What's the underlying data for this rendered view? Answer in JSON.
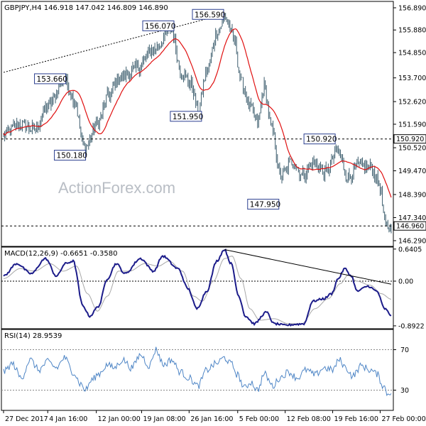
{
  "chart_data": [
    {
      "type": "candlestick",
      "header": "GBPJPY,H4  146.918 147.042 146.809 146.890",
      "watermark": "ActionForex.com",
      "y_ticks": [
        "156.890",
        "155.880",
        "154.850",
        "153.700",
        "152.620",
        "151.590",
        "150.520",
        "149.470",
        "148.390",
        "147.340",
        "146.290"
      ],
      "y_tick_values": [
        156.89,
        155.88,
        154.85,
        153.7,
        152.62,
        151.59,
        150.52,
        149.47,
        148.39,
        147.34,
        146.29
      ],
      "ylim": [
        146.03,
        157.18
      ],
      "x_ticks": [
        "27 Dec 2017",
        "4 Jan 16:00",
        "12 Jan 00:00",
        "19 Jan 08:00",
        "26 Jan 16:00",
        "5 Feb 00:00",
        "12 Feb 08:00",
        "19 Feb 16:00",
        "27 Feb 00:00"
      ],
      "x_tick_bars": [
        0,
        40,
        84,
        125,
        168,
        212,
        255,
        298,
        341
      ],
      "bar_count": 352,
      "price_colors": {
        "bars": "#3d5e6e",
        "ma": "#e01010",
        "level": "#000000"
      },
      "anchors": [
        {
          "bar": 0,
          "price": 151.1
        },
        {
          "bar": 14,
          "price": 151.6
        },
        {
          "bar": 28,
          "price": 151.35
        },
        {
          "bar": 40,
          "price": 152.4
        },
        {
          "bar": 55,
          "price": 153.6
        },
        {
          "bar": 64,
          "price": 152.7
        },
        {
          "bar": 73,
          "price": 150.5
        },
        {
          "bar": 85,
          "price": 151.6
        },
        {
          "bar": 95,
          "price": 152.9
        },
        {
          "bar": 105,
          "price": 153.7
        },
        {
          "bar": 120,
          "price": 154.1
        },
        {
          "bar": 136,
          "price": 155.0
        },
        {
          "bar": 152,
          "price": 155.9
        },
        {
          "bar": 161,
          "price": 153.9
        },
        {
          "bar": 170,
          "price": 153.4
        },
        {
          "bar": 176,
          "price": 152.2
        },
        {
          "bar": 184,
          "price": 154.0
        },
        {
          "bar": 194,
          "price": 155.9
        },
        {
          "bar": 201,
          "price": 156.45
        },
        {
          "bar": 209,
          "price": 155.4
        },
        {
          "bar": 215,
          "price": 153.5
        },
        {
          "bar": 224,
          "price": 152.3
        },
        {
          "bar": 230,
          "price": 151.6
        },
        {
          "bar": 236,
          "price": 153.3
        },
        {
          "bar": 243,
          "price": 151.3
        },
        {
          "bar": 251,
          "price": 149.2
        },
        {
          "bar": 261,
          "price": 149.9
        },
        {
          "bar": 271,
          "price": 149.3
        },
        {
          "bar": 281,
          "price": 149.8
        },
        {
          "bar": 292,
          "price": 149.4
        },
        {
          "bar": 302,
          "price": 150.4
        },
        {
          "bar": 312,
          "price": 149.2
        },
        {
          "bar": 322,
          "price": 149.7
        },
        {
          "bar": 333,
          "price": 149.6
        },
        {
          "bar": 340,
          "price": 148.9
        },
        {
          "bar": 346,
          "price": 147.0
        },
        {
          "bar": 351,
          "price": 146.9
        }
      ],
      "annotations": [
        {
          "label": "156.590",
          "bar": 198,
          "price": 156.59,
          "side": "left"
        },
        {
          "label": "156.070",
          "bar": 153,
          "price": 156.07,
          "side": "left"
        },
        {
          "label": "153.660",
          "bar": 55,
          "price": 153.66,
          "side": "left"
        },
        {
          "label": "151.950",
          "bar": 178,
          "price": 151.95,
          "side": "left"
        },
        {
          "label": "150.180",
          "bar": 73,
          "price": 150.18,
          "side": "left"
        },
        {
          "label": "150.920",
          "bar": 299,
          "price": 150.92,
          "side": "left"
        },
        {
          "label": "147.950",
          "bar": 248,
          "price": 147.95,
          "side": "left"
        }
      ],
      "levels": [
        {
          "label": "150.920",
          "price": 150.92,
          "style": "dashed",
          "color": "#000000"
        },
        {
          "label": "146.960",
          "price": 146.96,
          "style": "dashed",
          "color": "#000000"
        }
      ],
      "trendline": {
        "from": {
          "bar": 0,
          "price": 153.95
        },
        "to": {
          "bar": 200,
          "price": 156.6
        },
        "style": "dotted"
      }
    },
    {
      "type": "line",
      "header": "MACD(12,26,9) -0.6651 -0.3580",
      "y_ticks": [
        "0.6405",
        "0.00",
        "-0.8922"
      ],
      "y_tick_values": [
        0.6405,
        0.0,
        -0.8922
      ],
      "ylim": [
        -0.95,
        0.68
      ],
      "series": [
        {
          "name": "MACD",
          "color": "#1c1c8a",
          "anchors": [
            {
              "bar": 0,
              "v": 0.1
            },
            {
              "bar": 12,
              "v": 0.35
            },
            {
              "bar": 25,
              "v": 0.15
            },
            {
              "bar": 38,
              "v": 0.45
            },
            {
              "bar": 48,
              "v": 0.1
            },
            {
              "bar": 56,
              "v": 0.35
            },
            {
              "bar": 63,
              "v": 0.4
            },
            {
              "bar": 72,
              "v": -0.5
            },
            {
              "bar": 78,
              "v": -0.7
            },
            {
              "bar": 86,
              "v": -0.5
            },
            {
              "bar": 94,
              "v": 0.05
            },
            {
              "bar": 102,
              "v": 0.35
            },
            {
              "bar": 110,
              "v": 0.15
            },
            {
              "bar": 124,
              "v": 0.45
            },
            {
              "bar": 136,
              "v": 0.2
            },
            {
              "bar": 144,
              "v": 0.5
            },
            {
              "bar": 158,
              "v": 0.25
            },
            {
              "bar": 167,
              "v": -0.15
            },
            {
              "bar": 175,
              "v": -0.55
            },
            {
              "bar": 184,
              "v": -0.2
            },
            {
              "bar": 193,
              "v": 0.4
            },
            {
              "bar": 200,
              "v": 0.63
            },
            {
              "bar": 206,
              "v": 0.35
            },
            {
              "bar": 213,
              "v": -0.3
            },
            {
              "bar": 219,
              "v": -0.7
            },
            {
              "bar": 227,
              "v": -0.85
            },
            {
              "bar": 238,
              "v": -0.62
            },
            {
              "bar": 245,
              "v": -0.85
            },
            {
              "bar": 255,
              "v": -0.88
            },
            {
              "bar": 266,
              "v": -0.86
            },
            {
              "bar": 272,
              "v": -0.85
            },
            {
              "bar": 280,
              "v": -0.4
            },
            {
              "bar": 290,
              "v": -0.35
            },
            {
              "bar": 297,
              "v": -0.25
            },
            {
              "bar": 303,
              "v": 0.05
            },
            {
              "bar": 309,
              "v": 0.25
            },
            {
              "bar": 315,
              "v": 0.1
            },
            {
              "bar": 320,
              "v": -0.2
            },
            {
              "bar": 330,
              "v": -0.1
            },
            {
              "bar": 338,
              "v": -0.2
            },
            {
              "bar": 345,
              "v": -0.55
            },
            {
              "bar": 351,
              "v": -0.68
            }
          ]
        },
        {
          "name": "Signal",
          "color": "#a8a8a8",
          "anchors": [
            {
              "bar": 0,
              "v": 0.05
            },
            {
              "bar": 15,
              "v": 0.25
            },
            {
              "bar": 28,
              "v": 0.2
            },
            {
              "bar": 42,
              "v": 0.35
            },
            {
              "bar": 54,
              "v": 0.2
            },
            {
              "bar": 66,
              "v": 0.3
            },
            {
              "bar": 76,
              "v": -0.25
            },
            {
              "bar": 85,
              "v": -0.6
            },
            {
              "bar": 94,
              "v": -0.3
            },
            {
              "bar": 104,
              "v": 0.2
            },
            {
              "bar": 114,
              "v": 0.2
            },
            {
              "bar": 128,
              "v": 0.35
            },
            {
              "bar": 140,
              "v": 0.3
            },
            {
              "bar": 150,
              "v": 0.4
            },
            {
              "bar": 162,
              "v": 0.2
            },
            {
              "bar": 172,
              "v": -0.3
            },
            {
              "bar": 180,
              "v": -0.4
            },
            {
              "bar": 190,
              "v": 0.0
            },
            {
              "bar": 200,
              "v": 0.45
            },
            {
              "bar": 207,
              "v": 0.5
            },
            {
              "bar": 215,
              "v": 0.05
            },
            {
              "bar": 223,
              "v": -0.55
            },
            {
              "bar": 232,
              "v": -0.78
            },
            {
              "bar": 245,
              "v": -0.75
            },
            {
              "bar": 258,
              "v": -0.85
            },
            {
              "bar": 270,
              "v": -0.85
            },
            {
              "bar": 282,
              "v": -0.55
            },
            {
              "bar": 294,
              "v": -0.35
            },
            {
              "bar": 305,
              "v": -0.05
            },
            {
              "bar": 312,
              "v": 0.12
            },
            {
              "bar": 320,
              "v": 0.0
            },
            {
              "bar": 332,
              "v": -0.08
            },
            {
              "bar": 342,
              "v": -0.25
            },
            {
              "bar": 351,
              "v": -0.36
            }
          ]
        }
      ],
      "trendline": {
        "from": {
          "bar": 200,
          "v": 0.63
        },
        "to": {
          "bar": 351,
          "v": -0.06
        }
      }
    },
    {
      "type": "line",
      "header": "RSI(14) 28.9539",
      "y_ticks": [
        "70",
        "30"
      ],
      "y_tick_values": [
        70,
        30
      ],
      "ylim": [
        10,
        90
      ],
      "series": [
        {
          "name": "RSI(14)",
          "color": "#4f86c6",
          "anchors": [
            {
              "bar": 0,
              "v": 48
            },
            {
              "bar": 8,
              "v": 56
            },
            {
              "bar": 16,
              "v": 42
            },
            {
              "bar": 24,
              "v": 60
            },
            {
              "bar": 32,
              "v": 50
            },
            {
              "bar": 40,
              "v": 58
            },
            {
              "bar": 48,
              "v": 52
            },
            {
              "bar": 55,
              "v": 62
            },
            {
              "bar": 63,
              "v": 48
            },
            {
              "bar": 70,
              "v": 36
            },
            {
              "bar": 74,
              "v": 30
            },
            {
              "bar": 80,
              "v": 40
            },
            {
              "bar": 86,
              "v": 46
            },
            {
              "bar": 94,
              "v": 55
            },
            {
              "bar": 100,
              "v": 52
            },
            {
              "bar": 108,
              "v": 60
            },
            {
              "bar": 116,
              "v": 52
            },
            {
              "bar": 124,
              "v": 65
            },
            {
              "bar": 132,
              "v": 54
            },
            {
              "bar": 138,
              "v": 70
            },
            {
              "bar": 145,
              "v": 55
            },
            {
              "bar": 152,
              "v": 60
            },
            {
              "bar": 160,
              "v": 48
            },
            {
              "bar": 168,
              "v": 42
            },
            {
              "bar": 176,
              "v": 34
            },
            {
              "bar": 184,
              "v": 50
            },
            {
              "bar": 192,
              "v": 56
            },
            {
              "bar": 200,
              "v": 62
            },
            {
              "bar": 206,
              "v": 56
            },
            {
              "bar": 212,
              "v": 45
            },
            {
              "bar": 218,
              "v": 32
            },
            {
              "bar": 224,
              "v": 38
            },
            {
              "bar": 230,
              "v": 30
            },
            {
              "bar": 236,
              "v": 46
            },
            {
              "bar": 244,
              "v": 34
            },
            {
              "bar": 250,
              "v": 42
            },
            {
              "bar": 258,
              "v": 48
            },
            {
              "bar": 266,
              "v": 42
            },
            {
              "bar": 274,
              "v": 50
            },
            {
              "bar": 282,
              "v": 45
            },
            {
              "bar": 290,
              "v": 52
            },
            {
              "bar": 298,
              "v": 50
            },
            {
              "bar": 304,
              "v": 60
            },
            {
              "bar": 310,
              "v": 52
            },
            {
              "bar": 316,
              "v": 44
            },
            {
              "bar": 324,
              "v": 54
            },
            {
              "bar": 332,
              "v": 50
            },
            {
              "bar": 338,
              "v": 46
            },
            {
              "bar": 344,
              "v": 34
            },
            {
              "bar": 348,
              "v": 26
            },
            {
              "bar": 351,
              "v": 29
            }
          ]
        }
      ]
    }
  ]
}
